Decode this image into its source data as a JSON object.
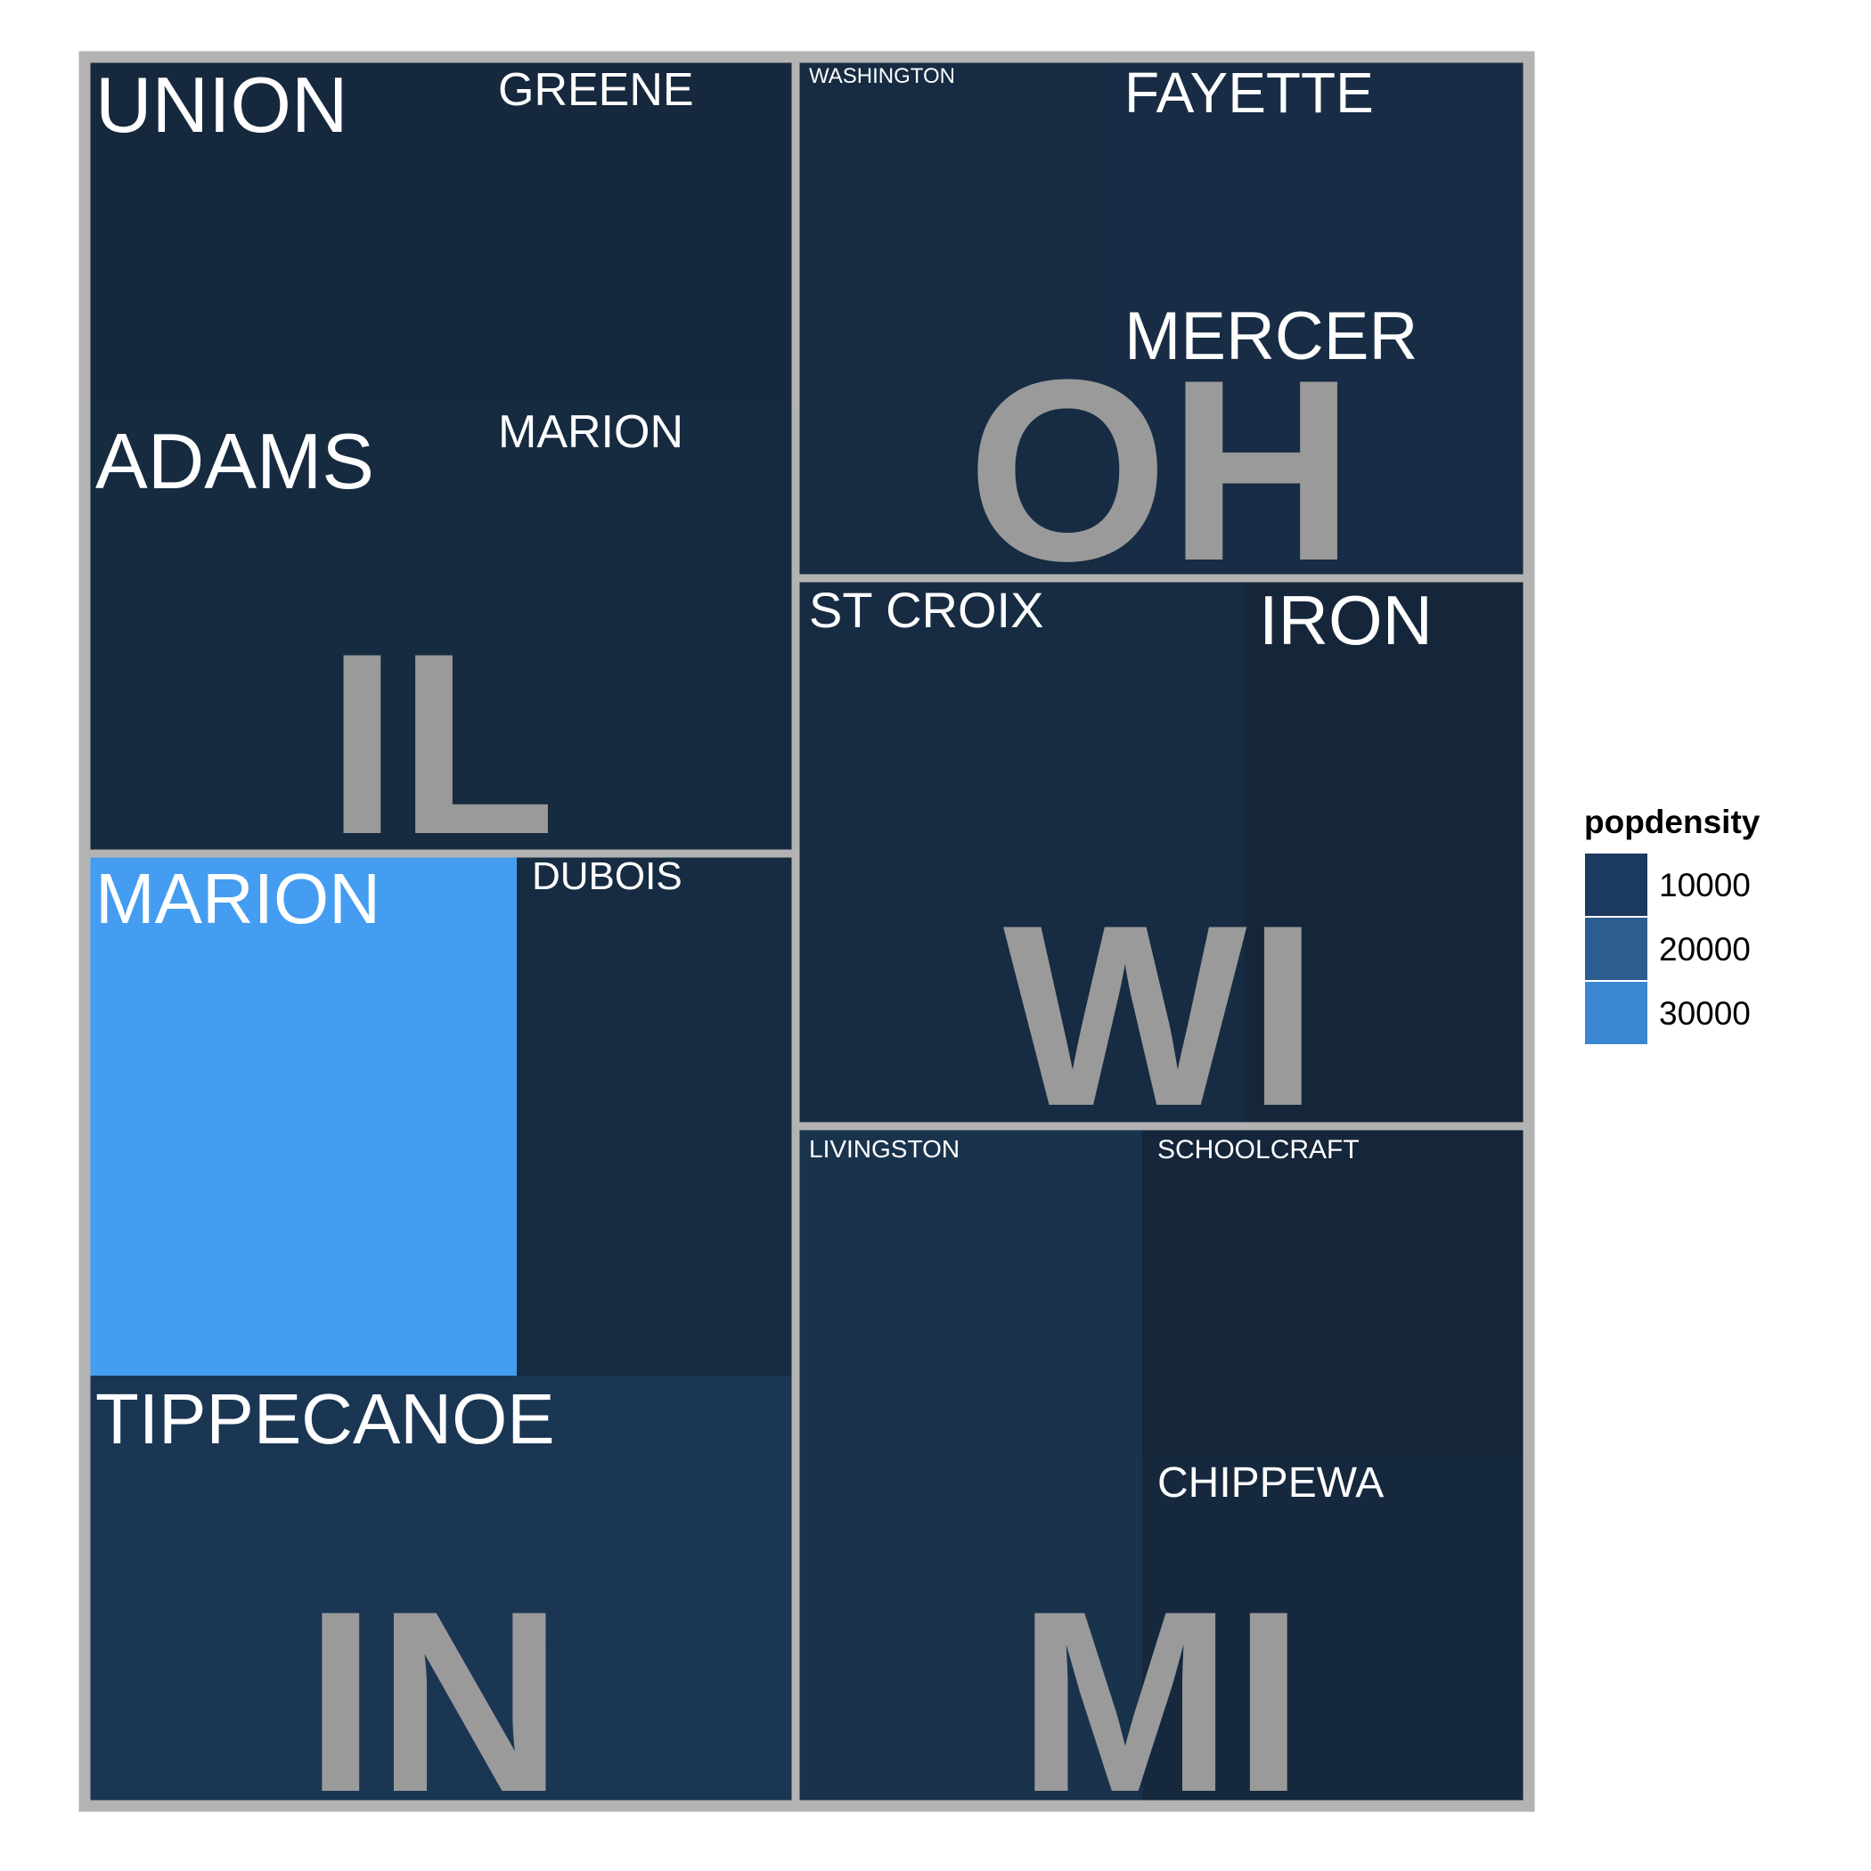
{
  "chart_data": {
    "type": "treemap",
    "size_variable": "area",
    "fill_variable": "popdensity",
    "groups": [
      {
        "name": "IL",
        "counties": [
          {
            "name": "UNION",
            "popdensity": 2000
          },
          {
            "name": "GREENE",
            "popdensity": 2000
          },
          {
            "name": "ADAMS",
            "popdensity": 2500
          },
          {
            "name": "MARION",
            "popdensity": 2500
          }
        ]
      },
      {
        "name": "IN",
        "counties": [
          {
            "name": "MARION",
            "popdensity": 35000
          },
          {
            "name": "DUBOIS",
            "popdensity": 3000
          },
          {
            "name": "TIPPECANOE",
            "popdensity": 6000
          }
        ]
      },
      {
        "name": "OH",
        "counties": [
          {
            "name": "WASHINGTON",
            "popdensity": 3000
          },
          {
            "name": "FAYETTE",
            "popdensity": 3500
          },
          {
            "name": "MERCER",
            "popdensity": 3500
          }
        ]
      },
      {
        "name": "WI",
        "counties": [
          {
            "name": "ST CROIX",
            "popdensity": 3000
          },
          {
            "name": "IRON",
            "popdensity": 1500
          }
        ]
      },
      {
        "name": "MI",
        "counties": [
          {
            "name": "LIVINGSTON",
            "popdensity": 5000
          },
          {
            "name": "SCHOOLCRAFT",
            "popdensity": 1500
          },
          {
            "name": "CHIPPEWA",
            "popdensity": 2000
          }
        ]
      }
    ],
    "legend": {
      "title": "popdensity",
      "entries": [
        {
          "label": "10000",
          "color": "#1c3960"
        },
        {
          "label": "20000",
          "color": "#2c5e91"
        },
        {
          "label": "30000",
          "color": "#3b87d1"
        }
      ],
      "placement": "right"
    },
    "colors": {
      "low": "#132132",
      "high": "#45a1f6",
      "border": "#b3b3b3",
      "state_label": "#9a9a9a"
    }
  }
}
